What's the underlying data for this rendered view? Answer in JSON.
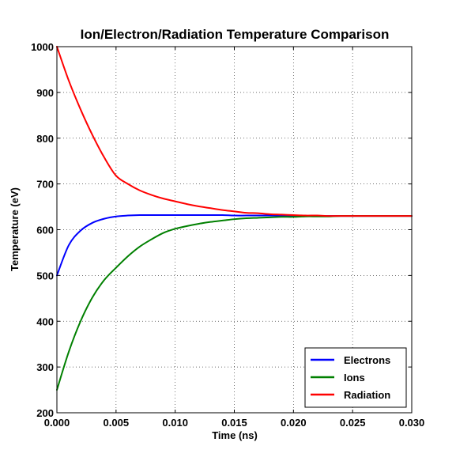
{
  "chart_data": {
    "type": "line",
    "title": "Ion/Electron/Radiation Temperature Comparison",
    "xlabel": "Time (ns)",
    "ylabel": "Temperature (eV)",
    "xlim": [
      0.0,
      0.03
    ],
    "ylim": [
      200,
      1000
    ],
    "x_ticks": [
      "0.000",
      "0.005",
      "0.010",
      "0.015",
      "0.020",
      "0.025",
      "0.030"
    ],
    "y_ticks": [
      "200",
      "300",
      "400",
      "500",
      "600",
      "700",
      "800",
      "900",
      "1000"
    ],
    "grid": true,
    "legend_position": "lower-right",
    "x": [
      0.0,
      0.001,
      0.002,
      0.003,
      0.004,
      0.005,
      0.006,
      0.007,
      0.008,
      0.009,
      0.01,
      0.011,
      0.012,
      0.013,
      0.014,
      0.015,
      0.016,
      0.017,
      0.018,
      0.019,
      0.02,
      0.021,
      0.022,
      0.023,
      0.024,
      0.025,
      0.026,
      0.027,
      0.028,
      0.029,
      0.03
    ],
    "series": [
      {
        "name": "Electrons",
        "color": "#0000ff",
        "values": [
          500,
          566,
          598,
          615,
          624,
          629,
          631,
          632,
          632,
          632,
          632,
          632,
          632,
          632,
          632,
          631,
          631,
          631,
          631,
          631,
          630,
          630,
          630,
          630,
          630,
          630,
          630,
          630,
          630,
          630,
          630
        ]
      },
      {
        "name": "Ions",
        "color": "#008000",
        "values": [
          250,
          333,
          400,
          452,
          490,
          517,
          542,
          563,
          579,
          593,
          602,
          608,
          613,
          617,
          620,
          623,
          625,
          626,
          627,
          628,
          628,
          629,
          629,
          629,
          630,
          630,
          630,
          630,
          630,
          630,
          630
        ]
      },
      {
        "name": "Radiation",
        "color": "#ff0000",
        "values": [
          1000,
          926,
          863,
          807,
          758,
          718,
          700,
          686,
          676,
          668,
          662,
          656,
          651,
          647,
          643,
          640,
          637,
          636,
          634,
          633,
          632,
          631,
          631,
          630,
          630,
          630,
          630,
          630,
          630,
          630,
          630
        ]
      }
    ]
  }
}
